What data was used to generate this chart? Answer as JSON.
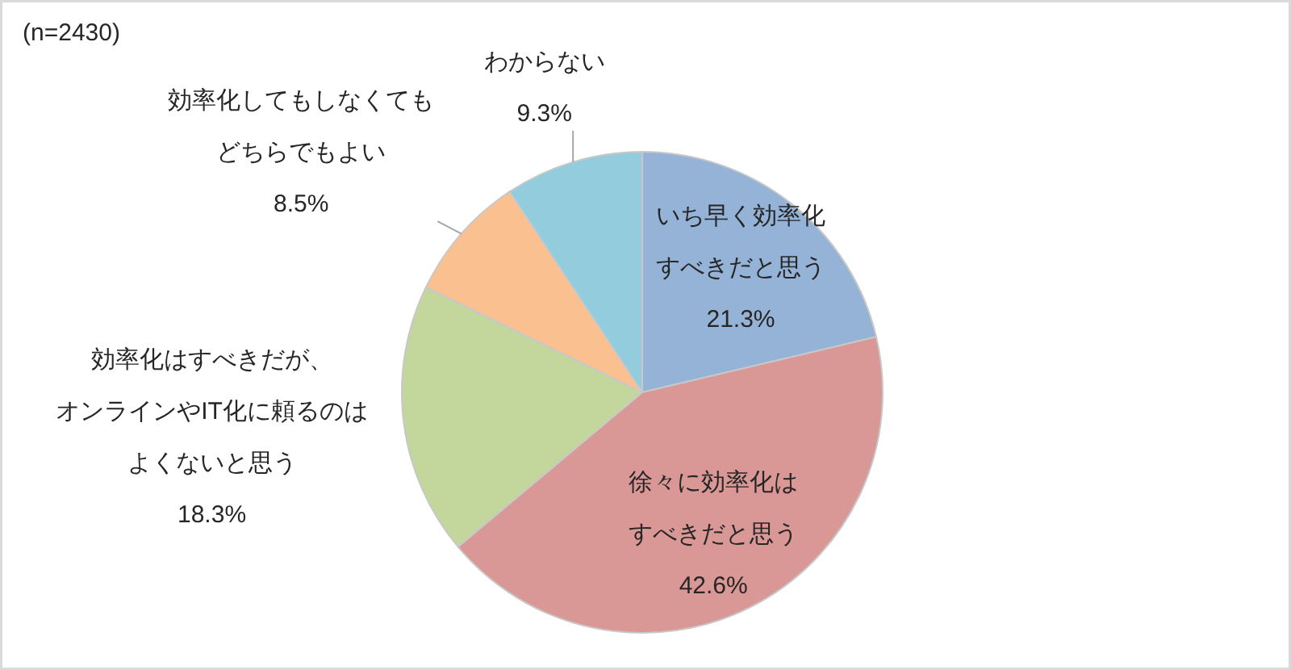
{
  "chart_data": {
    "type": "pie",
    "annotations": [
      "(n=2430)"
    ],
    "categories": [
      "いち早く効率化すべきだと思う",
      "徐々に効率化はすべきだと思う",
      "効率化はすべきだが、オンラインやIT化に頼るのはよくないと思う",
      "効率化してもしなくてもどちらでもよい",
      "わからない"
    ],
    "values": [
      21.3,
      42.6,
      18.3,
      8.5,
      9.3
    ],
    "colors": [
      "#95b3d7",
      "#d99795",
      "#c3d69b",
      "#fac090",
      "#93cddd"
    ],
    "value_labels": [
      "21.3%",
      "42.6%",
      "18.3%",
      "8.5%",
      "9.3%"
    ]
  }
}
